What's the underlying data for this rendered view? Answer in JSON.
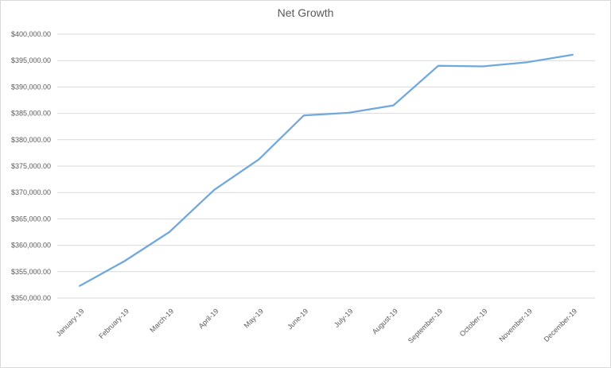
{
  "chart_data": {
    "type": "line",
    "title": "Net Growth",
    "xlabel": "",
    "ylabel": "",
    "categories": [
      "January-19",
      "February-19",
      "March-19",
      "April-19",
      "May-19",
      "June-19",
      "July-19",
      "August-19",
      "September-19",
      "October-19",
      "November-19",
      "December-19"
    ],
    "series": [
      {
        "name": "",
        "values": [
          352300,
          357000,
          362500,
          370500,
          376300,
          384600,
          385100,
          386500,
          394000,
          393900,
          394700,
          396100
        ]
      }
    ],
    "ylim": [
      350000,
      400000
    ],
    "y_ticks": [
      "$350,000.00",
      "$355,000.00",
      "$360,000.00",
      "$365,000.00",
      "$370,000.00",
      "$375,000.00",
      "$380,000.00",
      "$385,000.00",
      "$390,000.00",
      "$395,000.00",
      "$400,000.00"
    ],
    "y_tick_values": [
      350000,
      355000,
      360000,
      365000,
      370000,
      375000,
      380000,
      385000,
      390000,
      395000,
      400000
    ],
    "grid": true,
    "legend": "none",
    "colors": {
      "series": "#6fa8dc",
      "grid": "#d9d9d9",
      "text": "#595959"
    }
  }
}
